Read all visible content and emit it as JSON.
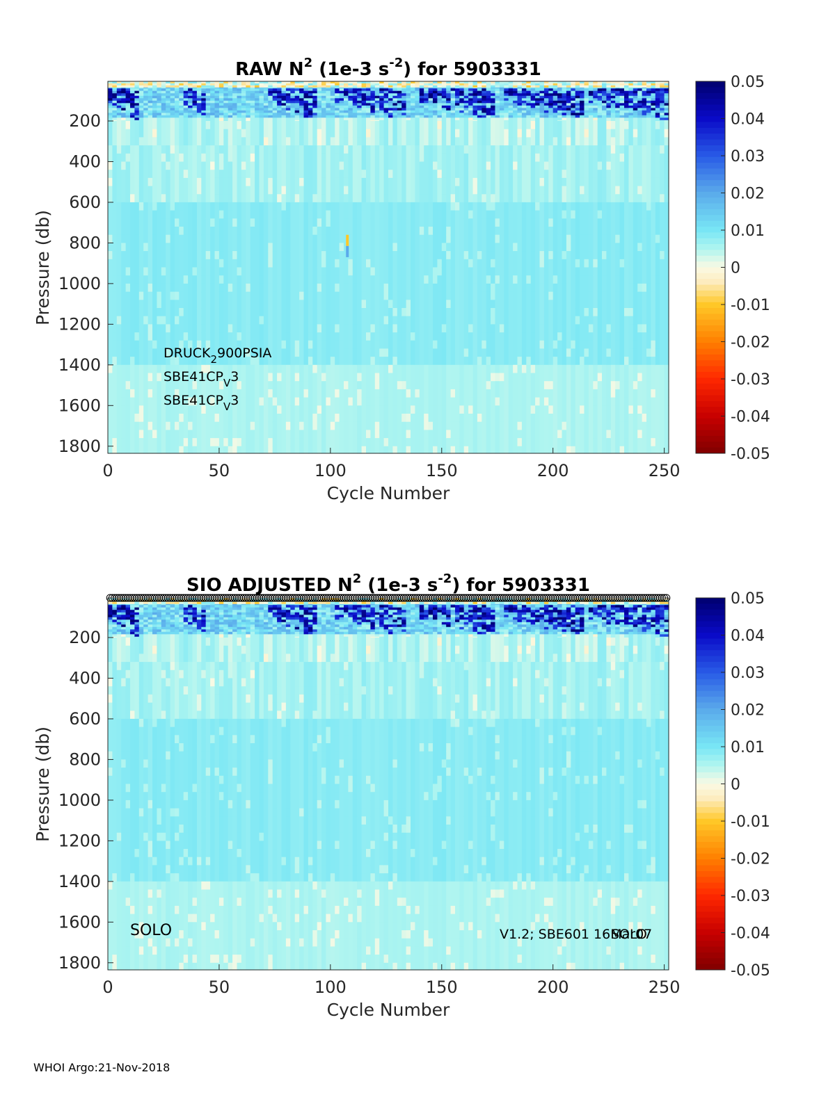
{
  "footer": "WHOI Argo:21-Nov-2018",
  "colorbar": {
    "min": -0.05,
    "max": 0.05,
    "ticks": [
      0.05,
      0.04,
      0.03,
      0.02,
      0.01,
      0,
      -0.01,
      -0.02,
      -0.03,
      -0.04,
      -0.05
    ],
    "tick_labels": [
      "0.05",
      "0.04",
      "0.03",
      "0.02",
      "0.01",
      "0",
      "-0.01",
      "-0.02",
      "-0.03",
      "-0.04",
      "-0.05"
    ],
    "colormap": "jet-like diverging (dark red - orange - cream - cyan - blue - dark blue)"
  },
  "chart_data": [
    {
      "type": "heatmap",
      "title_parts": [
        "RAW N",
        "2",
        " (1e-3 s",
        "-2",
        ") for 5903331"
      ],
      "xlabel": "Cycle Number",
      "ylabel": "Pressure (db)",
      "xlim": [
        0,
        252
      ],
      "ylim": [
        1835,
        5
      ],
      "y_reversed": true,
      "x_ticks": [
        0,
        50,
        100,
        150,
        200,
        250
      ],
      "x_tick_labels": [
        "0",
        "50",
        "100",
        "150",
        "200",
        "250"
      ],
      "y_ticks": [
        200,
        400,
        600,
        800,
        1000,
        1200,
        1400,
        1600,
        1800
      ],
      "y_tick_labels": [
        "200",
        "400",
        "600",
        "800",
        "1000",
        "1200",
        "1400",
        "1600",
        "1800"
      ],
      "annotations": [
        {
          "main": "DRUCK",
          "sub": "2",
          "rest": "900PSIA"
        },
        {
          "main": "SBE41CP",
          "sub": "V",
          "rest": "3"
        },
        {
          "main": "SBE41CP",
          "sub": "V",
          "rest": "3"
        }
      ],
      "approx_field": {
        "deep_value": 0.007,
        "surface_stratified_layer_db": [
          0,
          180
        ],
        "strong_patches_cycles": [
          [
            0,
            12
          ],
          [
            33,
            42
          ],
          [
            72,
            92
          ],
          [
            102,
            132
          ],
          [
            140,
            172
          ],
          [
            178,
            212
          ],
          [
            215,
            251
          ]
        ],
        "strong_value": 0.05,
        "outlier": {
          "cycle": 107,
          "pressure_db": [
            760,
            870
          ],
          "values": [
            -0.01,
            0.02
          ]
        }
      },
      "grid": false
    },
    {
      "type": "heatmap",
      "title_parts": [
        "SIO  ADJUSTED N",
        "2",
        " (1e-3 s",
        "-2",
        ") for 5903331"
      ],
      "xlabel": "Cycle Number",
      "ylabel": "Pressure (db)",
      "xlim": [
        0,
        252
      ],
      "ylim": [
        1835,
        5
      ],
      "y_reversed": true,
      "x_ticks": [
        0,
        50,
        100,
        150,
        200,
        250
      ],
      "x_tick_labels": [
        "0",
        "50",
        "100",
        "150",
        "200",
        "250"
      ],
      "y_ticks": [
        200,
        400,
        600,
        800,
        1000,
        1200,
        1400,
        1600,
        1800
      ],
      "y_tick_labels": [
        "200",
        "400",
        "600",
        "800",
        "1000",
        "1200",
        "1400",
        "1600",
        "1800"
      ],
      "annotation_left": "SOLO",
      "annotation_right_1": "V1.2; SBE601 16Mar07",
      "annotation_right_2": "SOLO",
      "top_markers": "open circles at every cycle along the top axis",
      "grid": false
    }
  ]
}
